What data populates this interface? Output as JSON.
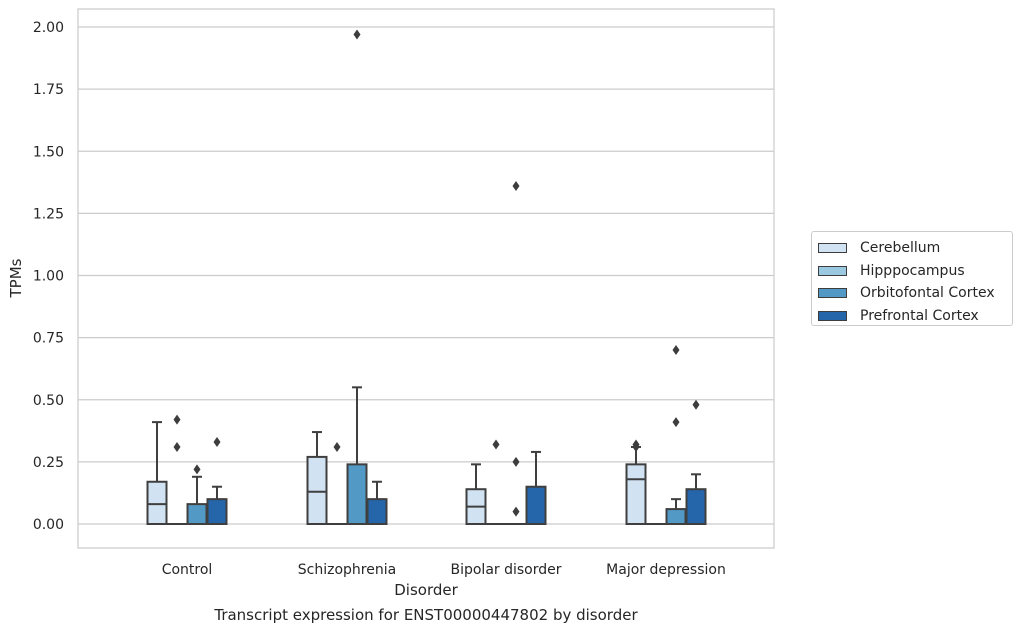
{
  "caption": "Transcript expression for ENST00000447802 by disorder",
  "chart_data": {
    "type": "box",
    "title": "",
    "xlabel": "Disorder",
    "ylabel": "TPMs",
    "ylim": [
      -0.1,
      2.07
    ],
    "yticks": [
      "0.00",
      "0.25",
      "0.50",
      "0.75",
      "1.00",
      "1.25",
      "1.50",
      "1.75",
      "2.00"
    ],
    "ytick_values": [
      0,
      0.25,
      0.5,
      0.75,
      1.0,
      1.25,
      1.5,
      1.75,
      2.0
    ],
    "grid": "horizontal",
    "legend_position": "outside-right",
    "categories": [
      "Control",
      "Schizophrenia",
      "Bipolar disorder",
      "Major depression"
    ],
    "series": [
      {
        "name": "Cerebellum",
        "color": "#d1e2f2",
        "boxes": [
          {
            "q1": 0,
            "median": 0.08,
            "q3": 0.17,
            "whisker_low": 0,
            "whisker_high": 0.41,
            "outliers": []
          },
          {
            "q1": 0,
            "median": 0.13,
            "q3": 0.27,
            "whisker_low": 0,
            "whisker_high": 0.37,
            "outliers": []
          },
          {
            "q1": 0,
            "median": 0.07,
            "q3": 0.14,
            "whisker_low": 0,
            "whisker_high": 0.24,
            "outliers": []
          },
          {
            "q1": 0,
            "median": 0.18,
            "q3": 0.24,
            "whisker_low": 0,
            "whisker_high": 0.31,
            "outliers": [
              0.31,
              0.32
            ]
          }
        ]
      },
      {
        "name": "Hipppocampus",
        "color": "#9ac8e0",
        "boxes": [
          {
            "q1": 0,
            "median": 0,
            "q3": 0,
            "whisker_low": 0,
            "whisker_high": 0,
            "outliers": [
              0.31,
              0.42
            ]
          },
          {
            "q1": 0,
            "median": 0,
            "q3": 0,
            "whisker_low": 0,
            "whisker_high": 0,
            "outliers": [
              0.31
            ]
          },
          {
            "q1": 0,
            "median": 0,
            "q3": 0,
            "whisker_low": 0,
            "whisker_high": 0,
            "outliers": [
              0.32
            ]
          },
          {
            "q1": 0,
            "median": 0,
            "q3": 0,
            "whisker_low": 0,
            "whisker_high": 0,
            "outliers": []
          }
        ]
      },
      {
        "name": "Orbitofontal Cortex",
        "color": "#5399c6",
        "boxes": [
          {
            "q1": 0,
            "median": 0,
            "q3": 0.08,
            "whisker_low": 0,
            "whisker_high": 0.19,
            "outliers": [
              0.22
            ]
          },
          {
            "q1": 0,
            "median": 0,
            "q3": 0.24,
            "whisker_low": 0,
            "whisker_high": 0.55,
            "outliers": [
              1.97
            ]
          },
          {
            "q1": 0,
            "median": 0,
            "q3": 0,
            "whisker_low": 0,
            "whisker_high": 0,
            "outliers": [
              0.05,
              0.25,
              1.36
            ]
          },
          {
            "q1": 0,
            "median": 0,
            "q3": 0.06,
            "whisker_low": 0,
            "whisker_high": 0.1,
            "outliers": [
              0.41,
              0.7
            ]
          }
        ]
      },
      {
        "name": "Prefrontal Cortex",
        "color": "#2565a9",
        "boxes": [
          {
            "q1": 0,
            "median": 0,
            "q3": 0.1,
            "whisker_low": 0,
            "whisker_high": 0.15,
            "outliers": [
              0.33
            ]
          },
          {
            "q1": 0,
            "median": 0,
            "q3": 0.1,
            "whisker_low": 0,
            "whisker_high": 0.17,
            "outliers": []
          },
          {
            "q1": 0,
            "median": 0,
            "q3": 0.15,
            "whisker_low": 0,
            "whisker_high": 0.29,
            "outliers": []
          },
          {
            "q1": 0,
            "median": 0,
            "q3": 0.14,
            "whisker_low": 0,
            "whisker_high": 0.2,
            "outliers": [
              0.48
            ]
          }
        ]
      }
    ]
  }
}
